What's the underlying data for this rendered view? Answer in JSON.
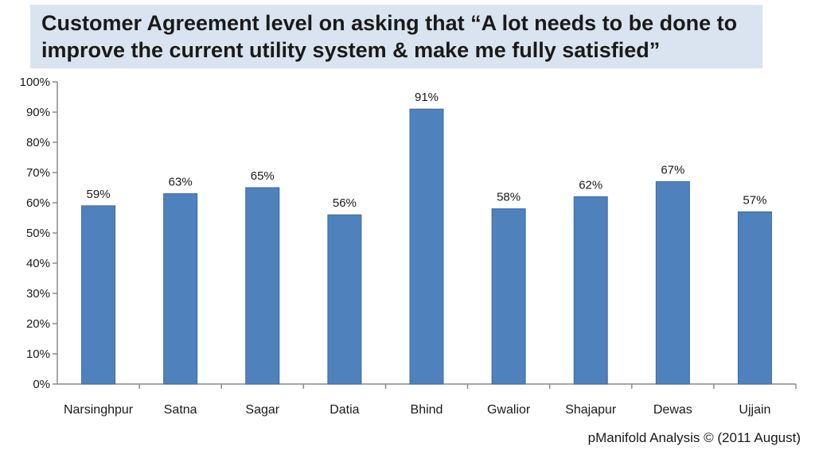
{
  "chart_data": {
    "type": "bar",
    "title_lines": [
      "Customer Agreement level on asking that “A lot needs to be done to",
      "improve the current utility system & make me fully satisfied”"
    ],
    "categories": [
      "Narsinghpur",
      "Satna",
      "Sagar",
      "Datia",
      "Bhind",
      "Gwalior",
      "Shajapur",
      "Dewas",
      "Ujjain"
    ],
    "values": [
      59,
      63,
      65,
      56,
      91,
      58,
      62,
      67,
      57
    ],
    "data_labels": [
      "59%",
      "63%",
      "65%",
      "56%",
      "91%",
      "58%",
      "62%",
      "67%",
      "57%"
    ],
    "y_ticks": [
      "0%",
      "10%",
      "20%",
      "30%",
      "40%",
      "50%",
      "60%",
      "70%",
      "80%",
      "90%",
      "100%"
    ],
    "ylim": [
      0,
      100
    ],
    "xlabel": "",
    "ylabel": "",
    "grid": false,
    "legend": "none",
    "bar_color": "#4f81bd",
    "bar_edge_color": "#3c6a9e",
    "axis_color": "#8c8c8c"
  },
  "footer": {
    "credit": "pManifold Analysis © (2011 August)"
  }
}
